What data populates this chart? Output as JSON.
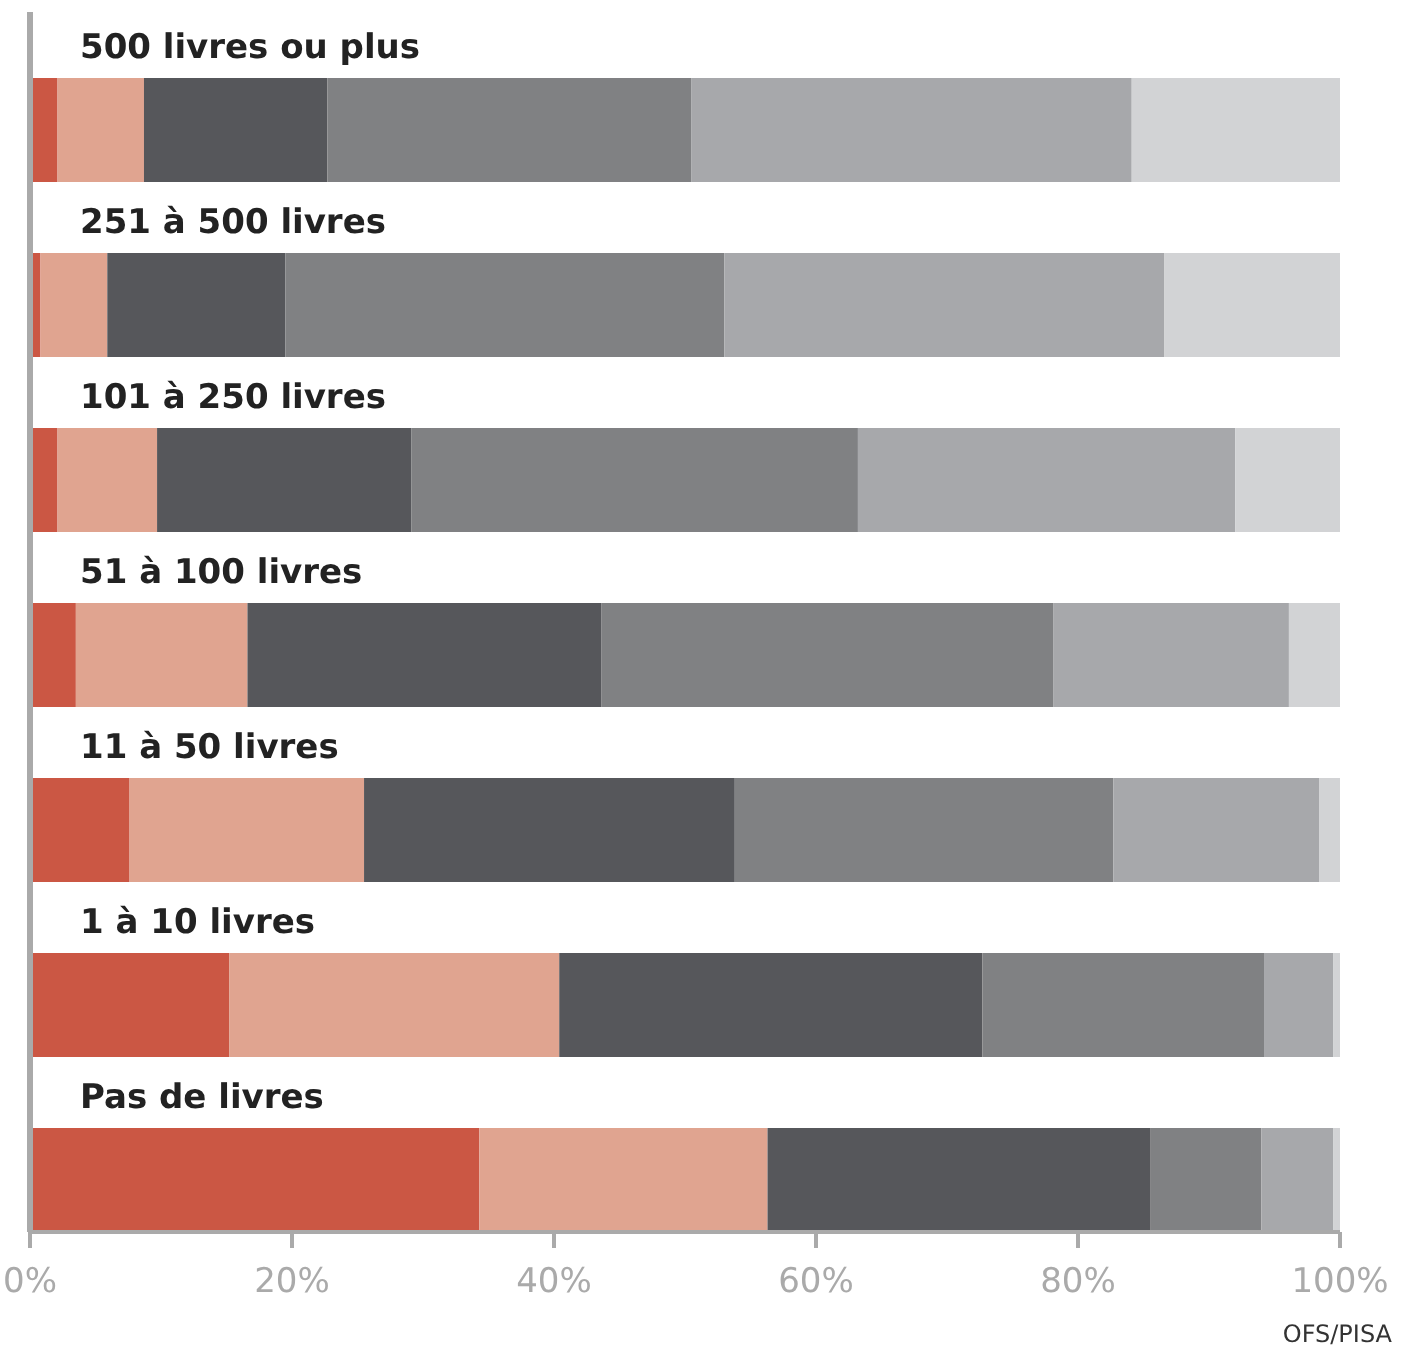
{
  "chart_data": {
    "type": "bar",
    "orientation": "horizontal",
    "stacked": true,
    "categories": [
      "500 livres ou plus",
      "251 à 500 livres",
      "101 à 250 livres",
      "51 à 100 livres",
      "11 à 50 livres",
      "1 à 10 livres",
      "Pas de livres"
    ],
    "series": [
      {
        "color": "#cb5744",
        "values": [
          2.1,
          0.8,
          2.1,
          3.5,
          7.6,
          15.2,
          34.3
        ]
      },
      {
        "color": "#e0a490",
        "values": [
          6.6,
          5.1,
          7.6,
          13.1,
          17.9,
          25.2,
          22.0
        ]
      },
      {
        "color": "#56575b",
        "values": [
          14.0,
          13.6,
          19.4,
          27.0,
          28.3,
          32.3,
          29.2
        ]
      },
      {
        "color": "#808183",
        "values": [
          27.8,
          33.5,
          34.1,
          34.5,
          28.9,
          21.5,
          8.5
        ]
      },
      {
        "color": "#a7a8ab",
        "values": [
          33.6,
          33.6,
          28.8,
          18.0,
          15.7,
          5.3,
          5.5
        ]
      },
      {
        "color": "#d2d3d5",
        "values": [
          15.9,
          13.4,
          8.0,
          3.9,
          1.6,
          0.5,
          0.5
        ]
      }
    ],
    "xlim": [
      0,
      100
    ],
    "xticks": [
      {
        "value": 0,
        "label": "0%"
      },
      {
        "value": 20,
        "label": "20%"
      },
      {
        "value": 40,
        "label": "40%"
      },
      {
        "value": 60,
        "label": "60%"
      },
      {
        "value": 80,
        "label": "80%"
      },
      {
        "value": 100,
        "label": "100%"
      }
    ],
    "annotations": [
      "OFS/PISA"
    ]
  }
}
